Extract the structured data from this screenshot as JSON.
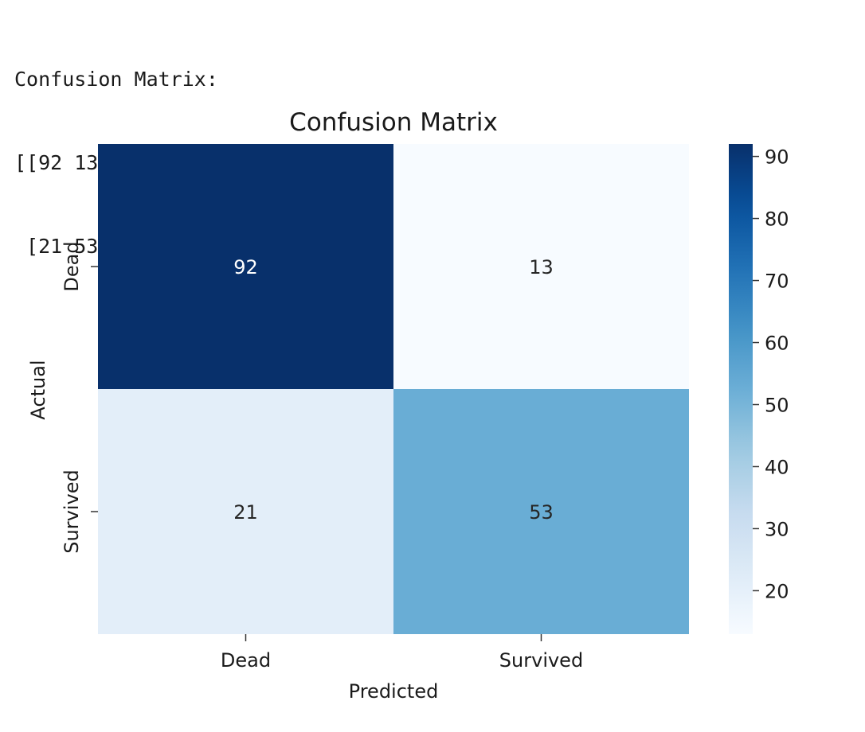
{
  "console": {
    "lines": [
      "Confusion Matrix:",
      "[[92 13]",
      " [21 53]]"
    ]
  },
  "chart_data": {
    "type": "heatmap",
    "title": "Confusion Matrix",
    "xlabel": "Predicted",
    "ylabel": "Actual",
    "x_categories": [
      "Dead",
      "Survived"
    ],
    "y_categories": [
      "Dead",
      "Survived"
    ],
    "values": [
      [
        92,
        13
      ],
      [
        21,
        53
      ]
    ],
    "colormap": "Blues",
    "colorbar": {
      "vmin": 13,
      "vmax": 92,
      "ticks": [
        20,
        30,
        40,
        50,
        60,
        70,
        80,
        90
      ]
    },
    "annotations": true,
    "colors": {
      "low": "#f7fbff",
      "high": "#08306b",
      "annot_dark_bg": "#ffffff",
      "annot_light_bg": "#262626"
    }
  }
}
